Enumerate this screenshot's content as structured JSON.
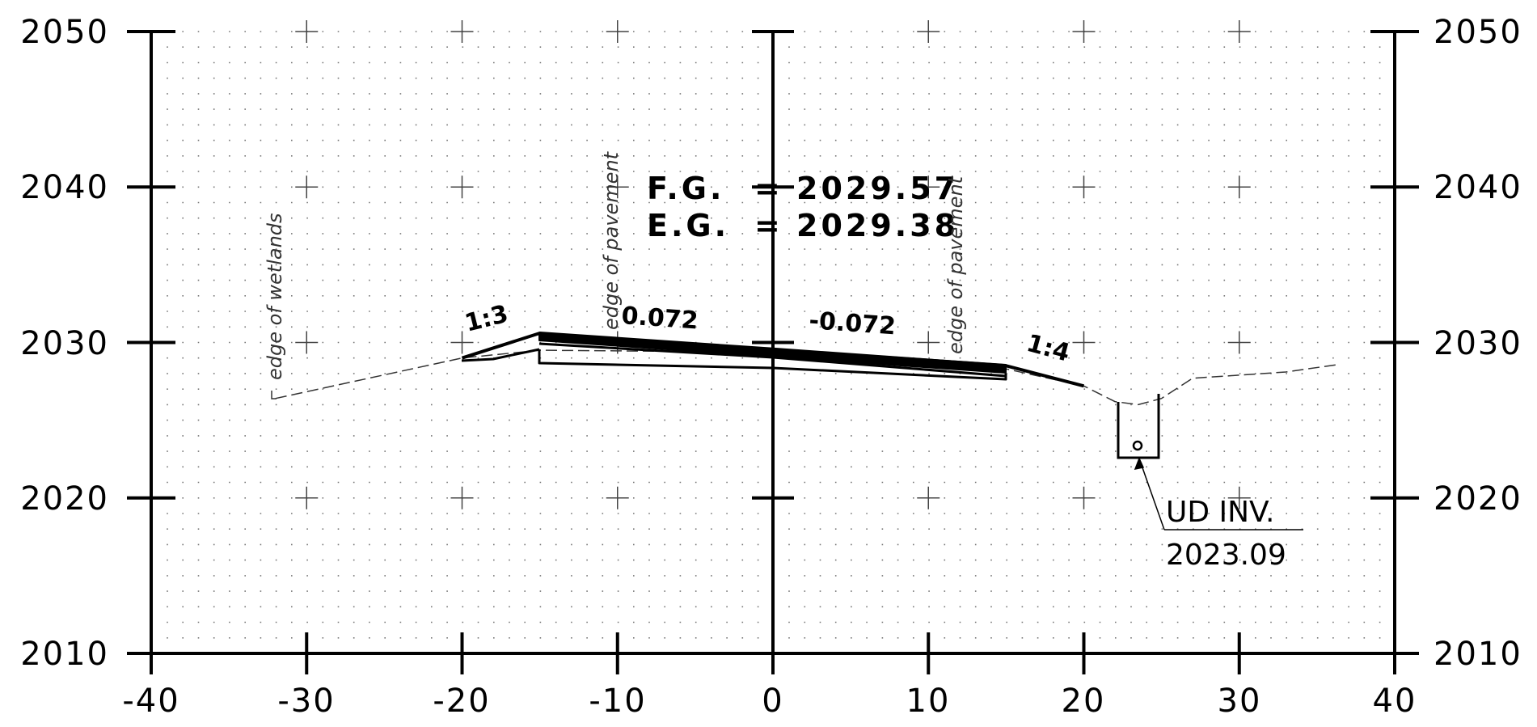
{
  "axes": {
    "x_ticks": [
      "-40",
      "-30",
      "-20",
      "-10",
      "0",
      "10",
      "20",
      "30",
      "40"
    ],
    "y_ticks": [
      "2010",
      "2020",
      "2030",
      "2040",
      "2050"
    ],
    "x_range": [
      -40,
      40
    ],
    "y_range": [
      2010,
      2050
    ],
    "grid": "dotted, 1-unit spacing with crosses every 10"
  },
  "elevations": {
    "fg_label": "F.G.",
    "fg_eq": "=",
    "fg_value": "2029.57",
    "eg_label": "E.G.",
    "eg_eq": "=",
    "eg_value": "2029.38"
  },
  "slopes": {
    "left_side": "1:3",
    "left_lane": "0.072",
    "right_lane": "-0.072",
    "right_side": "1:4"
  },
  "notes": {
    "wetlands": "edge of wetlands",
    "pavement_left": "edge of pavement",
    "pavement_right": "edge of pavement"
  },
  "underdrain": {
    "label": "UD INV.",
    "value": "2023.09"
  },
  "chart_data": {
    "type": "line",
    "xlim": [
      -40,
      40
    ],
    "ylim": [
      2010,
      2050
    ],
    "series": [
      {
        "name": "",
        "x": [
          -32,
          -20,
          -15,
          0,
          15,
          20,
          22,
          23.5,
          25,
          27,
          30,
          33,
          36.5
        ],
        "y": [
          2026.4,
          2029,
          2029.5,
          2029.38,
          2028.3,
          2027.2,
          2026.2,
          2026,
          2026.4,
          2027.7,
          2027.9,
          2028.1,
          2028.6
        ]
      },
      {
        "name": "",
        "x": [
          -20,
          -15,
          0,
          15,
          20
        ],
        "y": [
          2029,
          2030.6,
          2029.57,
          2028.5,
          2027.2
        ]
      }
    ]
  }
}
